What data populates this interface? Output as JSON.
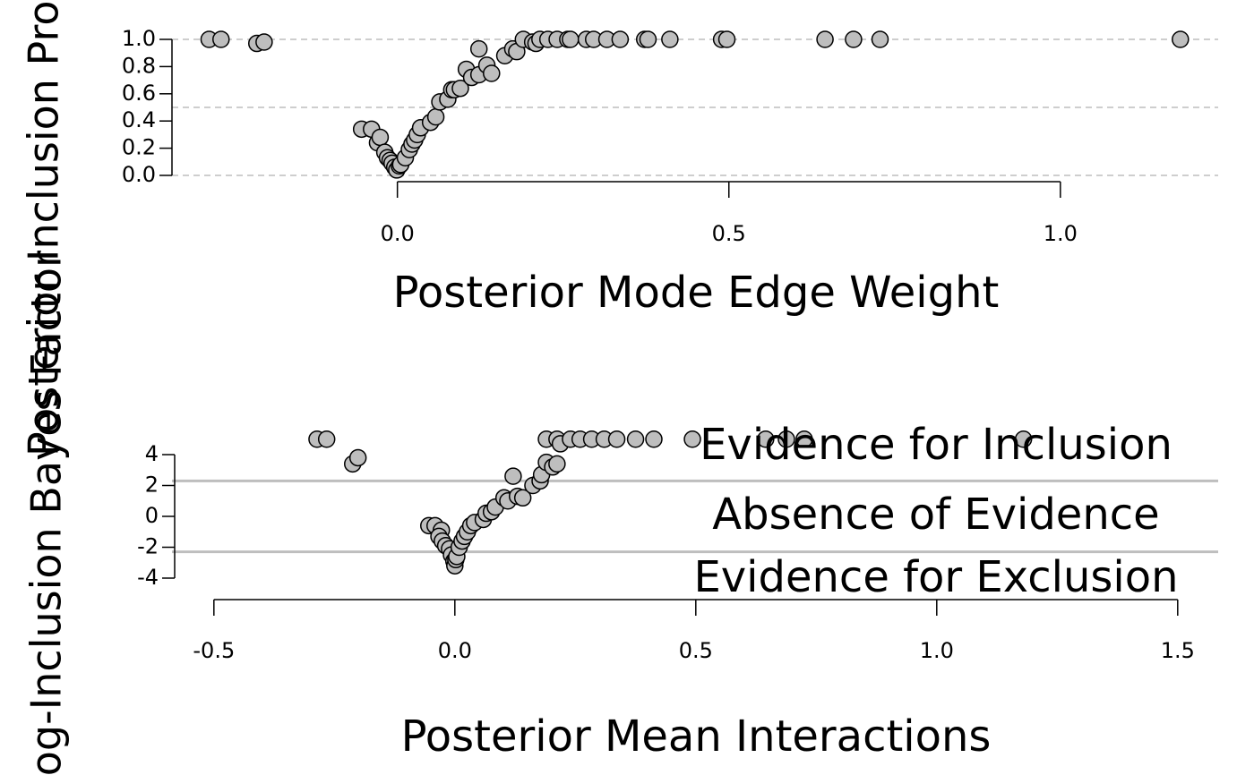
{
  "chart_data": [
    {
      "type": "scatter",
      "xlabel": "Posterior Mode Edge Weight",
      "ylabel": "Posterior Inclusion Probability",
      "color": "#bebebe",
      "x": [
        -0.284,
        -0.266,
        -0.212,
        -0.201,
        -0.054,
        -0.039,
        -0.03,
        -0.026,
        -0.019,
        -0.015,
        -0.011,
        -0.008,
        -0.004,
        -0.001,
        0.003,
        0.005,
        0.012,
        0.018,
        0.022,
        0.026,
        0.03,
        0.035,
        0.05,
        0.058,
        0.064,
        0.076,
        0.082,
        0.086,
        0.095,
        0.104,
        0.112,
        0.123,
        0.123,
        0.135,
        0.142,
        0.162,
        0.174,
        0.18,
        0.19,
        0.204,
        0.209,
        0.215,
        0.227,
        0.241,
        0.257,
        0.261,
        0.285,
        0.296,
        0.316,
        0.336,
        0.373,
        0.378,
        0.411,
        0.489,
        0.497,
        0.645,
        0.688,
        0.728,
        1.181
      ],
      "values": [
        1,
        1,
        0.97,
        0.98,
        0.34,
        0.34,
        0.24,
        0.28,
        0.17,
        0.13,
        0.11,
        0.09,
        0.06,
        0.04,
        0.07,
        0.08,
        0.13,
        0.19,
        0.23,
        0.26,
        0.3,
        0.35,
        0.39,
        0.43,
        0.54,
        0.56,
        0.63,
        0.63,
        0.64,
        0.78,
        0.72,
        0.74,
        0.93,
        0.81,
        0.75,
        0.88,
        0.93,
        0.91,
        1,
        0.98,
        0.97,
        1,
        1,
        1,
        1,
        1,
        1,
        1,
        1,
        1,
        1,
        1,
        1,
        1,
        1,
        1,
        1,
        1,
        1
      ],
      "xlim": [
        -0.34,
        1.238
      ],
      "ylim": [
        0,
        1
      ],
      "xticks": [
        {
          "value": 0,
          "label": "0.0"
        },
        0.5,
        {
          "value": 1,
          "label": "1.0"
        }
      ],
      "yticks": [
        {
          "value": 0,
          "label": "0.0"
        },
        0.2,
        0.4,
        0.6,
        0.8,
        {
          "value": 1,
          "label": "1.0"
        }
      ],
      "reference_lines": [
        0,
        0.5,
        1
      ],
      "reference_style": "dashed"
    },
    {
      "type": "scatter",
      "xlabel": "Posterior Mean Interactions",
      "ylabel": "Log-Inclusion Bayes Factor",
      "color": "#bebebe",
      "x": [
        -0.286,
        -0.266,
        -0.212,
        -0.201,
        -0.054,
        -0.041,
        -0.028,
        -0.033,
        -0.026,
        -0.019,
        -0.011,
        -0.007,
        -0.002,
        0,
        0.002,
        0.004,
        0.009,
        0.015,
        0.02,
        0.026,
        0.033,
        0.041,
        0.059,
        0.065,
        0.076,
        0.084,
        0.102,
        0.11,
        0.121,
        0.13,
        0.141,
        0.162,
        0.177,
        0.18,
        0.19,
        0.203,
        0.212,
        0.19,
        0.212,
        0.219,
        0.24,
        0.26,
        0.284,
        0.31,
        0.336,
        0.375,
        0.413,
        0.493,
        0.645,
        0.688,
        0.725,
        1.18
      ],
      "values": [
        5,
        5,
        3.4,
        3.8,
        -0.6,
        -0.6,
        -0.9,
        -1.3,
        -1.6,
        -1.9,
        -2.1,
        -2.5,
        -2.9,
        -3.2,
        -2.8,
        -2.6,
        -2,
        -1.6,
        -1.3,
        -1,
        -0.6,
        -0.4,
        -0.2,
        0.2,
        0.3,
        0.6,
        1.2,
        1,
        2.6,
        1.3,
        1.2,
        2,
        2.3,
        2.7,
        3.5,
        3.2,
        3.4,
        5,
        5,
        4.7,
        5,
        5,
        5,
        5,
        5,
        5,
        5,
        5,
        5,
        5,
        5,
        5
      ],
      "xlim": [
        -0.587,
        1.584
      ],
      "ylim": [
        -4,
        4
      ],
      "xticks": [
        -0.5,
        {
          "value": 0,
          "label": "0.0"
        },
        0.5,
        {
          "value": 1,
          "label": "1.0"
        },
        1.5
      ],
      "yticks": [
        -4,
        -2,
        0,
        2,
        4
      ],
      "reference_lines": [
        -2.3,
        2.3
      ],
      "reference_style": "solid",
      "annotations": [
        "Evidence for Inclusion",
        "Absence of Evidence",
        "Evidence for Exclusion"
      ]
    }
  ]
}
